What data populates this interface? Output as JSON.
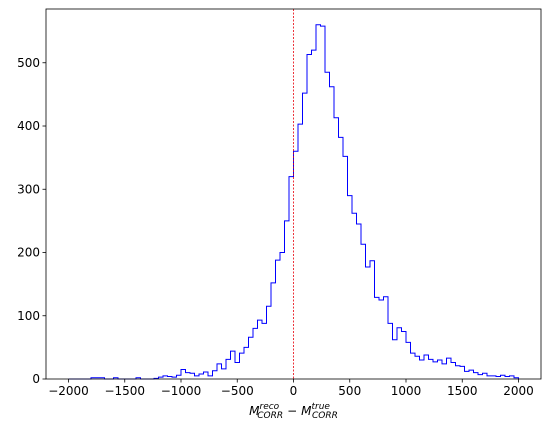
{
  "chart_data": {
    "type": "histogram",
    "title": "",
    "xlabel": {
      "base1": "M",
      "sup1": "reco",
      "sub1": "CORR",
      "op": "−",
      "base2": "M",
      "sup2": "true",
      "sub2": "CORR"
    },
    "ylabel": "",
    "xlim": [
      -2200,
      2200
    ],
    "ylim": [
      0,
      585
    ],
    "xticks": [
      -2000,
      -1500,
      -1000,
      -500,
      0,
      500,
      1000,
      1500,
      2000
    ],
    "xtick_labels": [
      "−2000",
      "−1500",
      "−1000",
      "−500",
      "0",
      "500",
      "1000",
      "1500",
      "2000"
    ],
    "yticks": [
      0,
      100,
      200,
      300,
      400,
      500
    ],
    "ytick_labels": [
      "0",
      "100",
      "200",
      "300",
      "400",
      "500"
    ],
    "bins": {
      "start": -2000,
      "width": 40,
      "counts": [
        0,
        0,
        0,
        0,
        0,
        2,
        2,
        2,
        0,
        0,
        2,
        0,
        0,
        0,
        0,
        2,
        0,
        0,
        0,
        1,
        3,
        5,
        4,
        3,
        6,
        15,
        10,
        9,
        5,
        8,
        11,
        5,
        13,
        24,
        16,
        31,
        44,
        26,
        41,
        50,
        66,
        80,
        93,
        88,
        115,
        152,
        188,
        200,
        250,
        320,
        360,
        403,
        452,
        513,
        520,
        560,
        558,
        485,
        462,
        413,
        382,
        352,
        290,
        262,
        245,
        213,
        177,
        187,
        129,
        125,
        130,
        88,
        62,
        81,
        75,
        58,
        41,
        36,
        30,
        38,
        31,
        27,
        30,
        24,
        33,
        26,
        21,
        20,
        12,
        14,
        10,
        7,
        9,
        5,
        5,
        4,
        6,
        4,
        5,
        2
      ]
    },
    "hist_color": "#0000ff",
    "reference_line": {
      "x": 0,
      "color": "#e8000b",
      "style": "dashed"
    },
    "grid": false,
    "legend": "none"
  }
}
